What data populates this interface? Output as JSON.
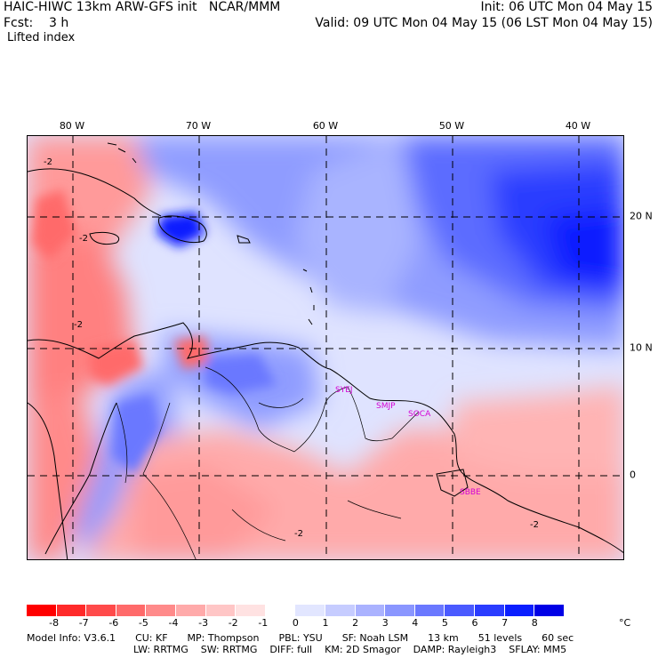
{
  "header": {
    "line1_left": "HAIC-HIWC 13km ARW-GFS init   NCAR/MMM",
    "line1_right": "Init: 06 UTC Mon 04 May 15",
    "line2_left": "Fcst:    3 h",
    "line2_right": "Valid: 09 UTC Mon 04 May 15 (06 LST Mon 04 May 15)",
    "field": "Lifted index"
  },
  "map": {
    "lon_labels": [
      "80 W",
      "70 W",
      "60 W",
      "50 W",
      "40 W"
    ],
    "lat_labels": [
      "20 N",
      "10 N",
      "0"
    ],
    "contour_labels": [
      "-2",
      "-2",
      "-2",
      "-2",
      "-2"
    ],
    "station_labels": [
      "SYEJ",
      "SMJP",
      "SOCA",
      "SBBE"
    ],
    "station_color": "#d400d4"
  },
  "colorbar": {
    "unit": "°C",
    "colors": [
      "#ff0000",
      "#ff2a2a",
      "#ff4a4a",
      "#ff6a6a",
      "#ff8a8a",
      "#ffaaaa",
      "#ffc6c6",
      "#ffe2e2",
      "#ffffff",
      "#e2e6ff",
      "#c6ccff",
      "#aab2ff",
      "#8a96ff",
      "#6a78ff",
      "#4a5aff",
      "#2a3cff",
      "#0a1eff",
      "#0000e6"
    ],
    "ticks": [
      "-8",
      "-7",
      "-6",
      "-5",
      "-4",
      "-3",
      "-2",
      "-1",
      "0",
      "1",
      "2",
      "3",
      "4",
      "5",
      "6",
      "7",
      "8"
    ]
  },
  "footer": {
    "line1": [
      "Model Info: V3.6.1",
      "CU: KF",
      "MP: Thompson",
      "PBL: YSU",
      "SF: Noah LSM",
      "13 km",
      "51 levels",
      "60 sec"
    ],
    "line2": [
      "LW: RRTMG",
      "SW: RRTMG",
      "DIFF: full",
      "KM: 2D Smagor",
      "DAMP: Rayleigh3",
      "SFLAY: MM5"
    ]
  }
}
